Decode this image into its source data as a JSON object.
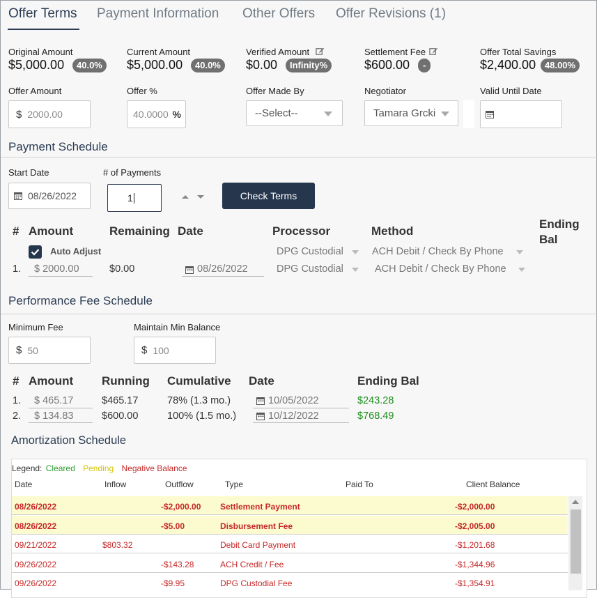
{
  "tabs": [
    {
      "label": "Offer Terms",
      "active": true
    },
    {
      "label": "Payment Information",
      "active": false
    },
    {
      "label": "Other Offers",
      "active": false
    },
    {
      "label": "Offer Revisions (1)",
      "active": false
    }
  ],
  "summary": {
    "original_amount": {
      "label": "Original Amount",
      "value": "$5,000.00",
      "pct": "40.0%"
    },
    "current_amount": {
      "label": "Current Amount",
      "value": "$5,000.00",
      "pct": "40.0%"
    },
    "verified_amount": {
      "label": "Verified Amount",
      "value": "$0.00",
      "pct": "Infinity%"
    },
    "settlement_fee": {
      "label": "Settlement Fee",
      "value": "$600.00",
      "pct": "-"
    },
    "offer_total_savings": {
      "label": "Offer Total Savings",
      "value": "$2,400.00",
      "pct": "48.00%"
    }
  },
  "offer_fields": {
    "offer_amount": {
      "label": "Offer Amount",
      "prefix": "$",
      "value": "2000.00"
    },
    "offer_pct": {
      "label": "Offer %",
      "value": "40.0000",
      "suffix": "%"
    },
    "offer_made_by": {
      "label": "Offer Made By",
      "value": "--Select--"
    },
    "negotiator": {
      "label": "Negotiator",
      "value": "Tamara Grcki"
    },
    "valid_until": {
      "label": "Valid Until Date",
      "value": ""
    }
  },
  "payment_schedule": {
    "title": "Payment Schedule",
    "start_date": {
      "label": "Start Date",
      "value": "08/26/2022"
    },
    "num_payments": {
      "label": "# of Payments",
      "value": "1"
    },
    "check_terms_label": "Check Terms",
    "headers": {
      "num": "#",
      "amount": "Amount",
      "remaining": "Remaining",
      "date": "Date",
      "processor": "Processor",
      "method": "Method",
      "ending_bal": "Ending Bal"
    },
    "auto_adjust_label": "Auto Adjust",
    "default_processor": "DPG Custodial",
    "default_method": "ACH Debit / Check By Phone",
    "rows": [
      {
        "num": "1.",
        "amount": "2000.00",
        "remaining": "$0.00",
        "date": "08/26/2022",
        "processor": "DPG Custodial",
        "method": "ACH Debit / Check By Phone"
      }
    ]
  },
  "performance_fee": {
    "title": "Performance Fee Schedule",
    "minimum_fee": {
      "label": "Minimum Fee",
      "prefix": "$",
      "value": "50"
    },
    "maintain_min_balance": {
      "label": "Maintain Min Balance",
      "prefix": "$",
      "value": "100"
    },
    "headers": {
      "num": "#",
      "amount": "Amount",
      "running": "Running",
      "cumulative": "Cumulative",
      "date": "Date",
      "ending_bal": "Ending Bal"
    },
    "rows": [
      {
        "num": "1.",
        "amount": "465.17",
        "running": "$465.17",
        "cumulative": "78% (1.3 mo.)",
        "date": "10/05/2022",
        "ending_bal": "$243.28"
      },
      {
        "num": "2.",
        "amount": "134.83",
        "running": "$600.00",
        "cumulative": "100% (1.5 mo.)",
        "date": "10/12/2022",
        "ending_bal": "$768.49"
      }
    ]
  },
  "amortization": {
    "title": "Amortization Schedule",
    "legend": {
      "label": "Legend:",
      "cleared": "Cleared",
      "pending": "Pending",
      "negative": "Negative Balance"
    },
    "headers": {
      "date": "Date",
      "inflow": "Inflow",
      "outflow": "Outflow",
      "type": "Type",
      "paid_to": "Paid To",
      "client_balance": "Client Balance"
    },
    "rows": [
      {
        "date": "08/26/2022",
        "inflow": "",
        "outflow": "-$2,000.00",
        "type": "Settlement Payment",
        "paid_to": "",
        "client_balance": "-$2,000.00",
        "pending": true
      },
      {
        "date": "08/26/2022",
        "inflow": "",
        "outflow": "-$5.00",
        "type": "Disbursement Fee",
        "paid_to": "",
        "client_balance": "-$2,005.00",
        "pending": true
      },
      {
        "date": "09/21/2022",
        "inflow": "$803.32",
        "outflow": "",
        "type": "Debit Card Payment",
        "paid_to": "",
        "client_balance": "-$1,201.68",
        "pending": false
      },
      {
        "date": "09/26/2022",
        "inflow": "",
        "outflow": "-$143.28",
        "type": "ACH Credit / Fee",
        "paid_to": "",
        "client_balance": "-$1,344.96",
        "pending": false
      },
      {
        "date": "09/26/2022",
        "inflow": "",
        "outflow": "-$9.95",
        "type": "DPG Custodial Fee",
        "paid_to": "",
        "client_balance": "-$1,354.91",
        "pending": false
      }
    ]
  },
  "colors": {
    "accent": "#2b3c52",
    "cleared": "#2e9b2e",
    "pending": "#d6c400",
    "negative": "#c62828",
    "button": "#25364d"
  }
}
